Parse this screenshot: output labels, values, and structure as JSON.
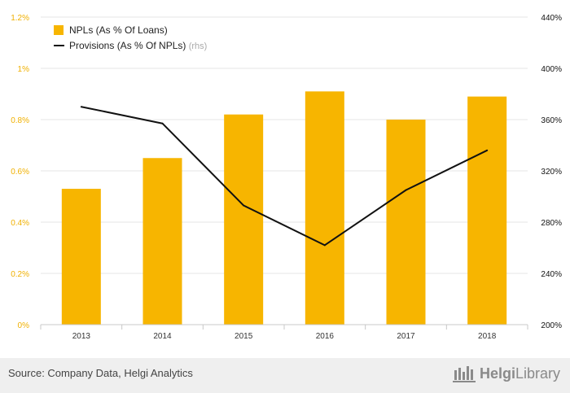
{
  "chart_data": {
    "type": "bar+line",
    "categories": [
      "2013",
      "2014",
      "2015",
      "2016",
      "2017",
      "2018"
    ],
    "series": [
      {
        "name": "NPLs (As % Of Loans)",
        "type": "bar",
        "axis": "left",
        "color": "#f7b500",
        "values": [
          0.53,
          0.65,
          0.82,
          0.91,
          0.8,
          0.89
        ]
      },
      {
        "name": "Provisions (As % Of NPLs)",
        "name_suffix": "(rhs)",
        "type": "line",
        "axis": "right",
        "color": "#111111",
        "values": [
          370,
          357,
          293,
          262,
          305,
          336
        ]
      }
    ],
    "left_axis": {
      "min": 0,
      "max": 1.2,
      "ticks": [
        0,
        0.2,
        0.4,
        0.6,
        0.8,
        1.0,
        1.2
      ],
      "tick_labels": [
        "0%",
        "0.2%",
        "0.4%",
        "0.6%",
        "0.8%",
        "1%",
        "1.2%"
      ],
      "label_color": "#f0b000"
    },
    "right_axis": {
      "min": 200,
      "max": 440,
      "ticks": [
        200,
        240,
        280,
        320,
        360,
        400,
        440
      ],
      "tick_labels": [
        "200%",
        "240%",
        "280%",
        "320%",
        "360%",
        "400%",
        "440%"
      ],
      "label_color": "#111111"
    },
    "grid": true,
    "legend_position": "top-left"
  },
  "footer": {
    "source": "Source: Company Data, Helgi Analytics",
    "brand_part1": "Helgi",
    "brand_part2": "Library"
  }
}
